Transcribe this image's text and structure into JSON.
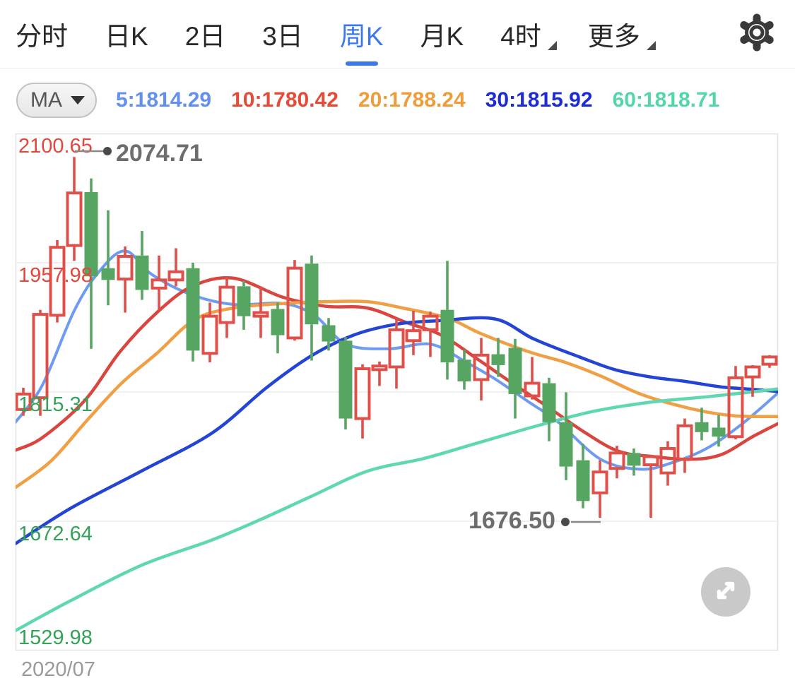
{
  "tab_bar": {
    "active_color": "#3b78f0",
    "tabs": [
      {
        "label": "分时",
        "active": false,
        "caret": false
      },
      {
        "label": "日K",
        "active": false,
        "caret": false
      },
      {
        "label": "2日",
        "active": false,
        "caret": false
      },
      {
        "label": "3日",
        "active": false,
        "caret": false
      },
      {
        "label": "周K",
        "active": true,
        "caret": false
      },
      {
        "label": "月K",
        "active": false,
        "caret": false
      },
      {
        "label": "4时",
        "active": false,
        "caret": true
      },
      {
        "label": "更多",
        "active": false,
        "caret": true
      }
    ],
    "settings_icon": "gear-icon"
  },
  "indicator_bar": {
    "selector_label": "MA",
    "selector_caret_icon": "chevron-down-icon",
    "items": [
      {
        "label": "5:1814.29",
        "color": "#6390ee"
      },
      {
        "label": "10:1780.42",
        "color": "#e44c38"
      },
      {
        "label": "20:1788.24",
        "color": "#ef9c3a"
      },
      {
        "label": "30:1815.92",
        "color": "#1d2bd2"
      },
      {
        "label": "60:1818.71",
        "color": "#55d6a9"
      }
    ]
  },
  "chart_data": {
    "type": "candlestick",
    "x_axis_label": "2020/07",
    "up_color": "#e0504a",
    "down_color": "#57a562",
    "grid": true,
    "y_ticks": [
      {
        "label": "2100.65",
        "price": 2100.65,
        "color": "#e2483c"
      },
      {
        "label": "1957.98",
        "price": 1957.98,
        "color": "#e2483c"
      },
      {
        "label": "1815.31",
        "price": 1815.31,
        "color": "#36a159"
      },
      {
        "label": "1672.64",
        "price": 1672.64,
        "color": "#36a159"
      },
      {
        "label": "1529.98",
        "price": 1529.98,
        "color": "#36a159"
      }
    ],
    "annotations": {
      "high": {
        "label": "2074.71",
        "price": 2074.71,
        "color": "#6d6d6d"
      },
      "low": {
        "label": "1676.50",
        "price": 1676.5,
        "color": "#6d6d6d"
      }
    },
    "candles_format": [
      "open",
      "high",
      "low",
      "close",
      "direction(u=up-hollow-red,d=down-solid-green)"
    ],
    "candles": [
      [
        1796,
        1820,
        1789,
        1813,
        "u"
      ],
      [
        1809,
        1906,
        1789,
        1901,
        "u"
      ],
      [
        1900,
        1983,
        1892,
        1975,
        "u"
      ],
      [
        1977,
        2074.71,
        1960,
        2035,
        "u"
      ],
      [
        2036,
        2051,
        1863,
        1943,
        "d"
      ],
      [
        1952,
        2016,
        1911,
        1939,
        "d"
      ],
      [
        1940,
        1976,
        1903,
        1965,
        "u"
      ],
      [
        1966,
        1993,
        1917,
        1928,
        "d"
      ],
      [
        1930,
        1966,
        1906,
        1939,
        "u"
      ],
      [
        1939,
        1974,
        1932,
        1948,
        "u"
      ],
      [
        1952,
        1958,
        1849,
        1861,
        "d"
      ],
      [
        1858,
        1914,
        1848,
        1899,
        "u"
      ],
      [
        1892,
        1942,
        1875,
        1931,
        "u"
      ],
      [
        1932,
        1938,
        1884,
        1899,
        "d"
      ],
      [
        1899,
        1932,
        1875,
        1903,
        "u"
      ],
      [
        1907,
        1914,
        1858,
        1878,
        "d"
      ],
      [
        1875,
        1961,
        1872,
        1952,
        "u"
      ],
      [
        1957,
        1966,
        1850,
        1890,
        "d"
      ],
      [
        1889,
        1897,
        1861,
        1871,
        "d"
      ],
      [
        1872,
        1876,
        1774,
        1786,
        "d"
      ],
      [
        1786,
        1846,
        1764,
        1841,
        "u"
      ],
      [
        1840,
        1849,
        1822,
        1844,
        "u"
      ],
      [
        1843,
        1897,
        1819,
        1884,
        "u"
      ],
      [
        1872,
        1905,
        1856,
        1883,
        "u"
      ],
      [
        1884,
        1904,
        1854,
        1899,
        "u"
      ],
      [
        1906,
        1960,
        1829,
        1848,
        "d"
      ],
      [
        1851,
        1862,
        1818,
        1827,
        "d"
      ],
      [
        1829,
        1875,
        1806,
        1856,
        "u"
      ],
      [
        1857,
        1875,
        1832,
        1845,
        "d"
      ],
      [
        1864,
        1874,
        1786,
        1813,
        "d"
      ],
      [
        1811,
        1854,
        1807,
        1825,
        "u"
      ],
      [
        1825,
        1831,
        1761,
        1782,
        "d"
      ],
      [
        1782,
        1815,
        1718,
        1733,
        "d"
      ],
      [
        1740,
        1758,
        1687,
        1695,
        "d"
      ],
      [
        1704,
        1740,
        1676.5,
        1727,
        "u"
      ],
      [
        1731,
        1756,
        1720,
        1748,
        "u"
      ],
      [
        1748,
        1753,
        1723,
        1734,
        "d"
      ],
      [
        1735,
        1746,
        1676.5,
        1744,
        "u"
      ],
      [
        1726,
        1761,
        1712,
        1753,
        "u"
      ],
      [
        1741,
        1786,
        1726,
        1778,
        "u"
      ],
      [
        1782,
        1798,
        1762,
        1771,
        "d"
      ],
      [
        1776,
        1790,
        1755,
        1766,
        "d"
      ],
      [
        1766,
        1844,
        1763,
        1831,
        "u"
      ],
      [
        1832,
        1845,
        1810,
        1843,
        "u"
      ],
      [
        1846,
        1856,
        1842,
        1854,
        "u"
      ]
    ],
    "ma_series": [
      {
        "name": "MA5",
        "color": "#6e9bf0",
        "width": 4,
        "points": [
          [
            22,
            1782
          ],
          [
            60,
            1823
          ],
          [
            105,
            1905
          ],
          [
            140,
            1948
          ],
          [
            177,
            1971
          ],
          [
            215,
            1945
          ],
          [
            270,
            1923
          ],
          [
            330,
            1912
          ],
          [
            400,
            1913
          ],
          [
            445,
            1900
          ],
          [
            490,
            1868
          ],
          [
            550,
            1863
          ],
          [
            610,
            1868
          ],
          [
            660,
            1848
          ],
          [
            700,
            1830
          ],
          [
            745,
            1806
          ],
          [
            790,
            1782
          ],
          [
            850,
            1741
          ],
          [
            907,
            1730
          ],
          [
            950,
            1737
          ],
          [
            1000,
            1753
          ],
          [
            1050,
            1780
          ],
          [
            1101,
            1814.29
          ]
        ]
      },
      {
        "name": "MA10",
        "color": "#d9453f",
        "width": 4.5,
        "points": [
          [
            22,
            1751
          ],
          [
            60,
            1765
          ],
          [
            120,
            1806
          ],
          [
            170,
            1860
          ],
          [
            222,
            1903
          ],
          [
            272,
            1932
          ],
          [
            330,
            1941
          ],
          [
            400,
            1920
          ],
          [
            460,
            1910
          ],
          [
            520,
            1908
          ],
          [
            575,
            1892
          ],
          [
            625,
            1878
          ],
          [
            675,
            1852
          ],
          [
            725,
            1825
          ],
          [
            775,
            1799
          ],
          [
            825,
            1772
          ],
          [
            875,
            1750
          ],
          [
            925,
            1744
          ],
          [
            975,
            1741
          ],
          [
            1020,
            1746
          ],
          [
            1065,
            1766
          ],
          [
            1101,
            1780.42
          ]
        ]
      },
      {
        "name": "MA20",
        "color": "#efa045",
        "width": 4.5,
        "points": [
          [
            22,
            1710
          ],
          [
            72,
            1739
          ],
          [
            122,
            1783
          ],
          [
            172,
            1825
          ],
          [
            222,
            1858
          ],
          [
            275,
            1895
          ],
          [
            330,
            1908
          ],
          [
            400,
            1913
          ],
          [
            460,
            1915
          ],
          [
            520,
            1915
          ],
          [
            570,
            1908
          ],
          [
            633,
            1897
          ],
          [
            680,
            1880
          ],
          [
            747,
            1860
          ],
          [
            800,
            1848
          ],
          [
            850,
            1833
          ],
          [
            910,
            1812
          ],
          [
            983,
            1796
          ],
          [
            1040,
            1789
          ],
          [
            1101,
            1788.24
          ]
        ]
      },
      {
        "name": "MA30",
        "color": "#2444d4",
        "width": 4.5,
        "points": [
          [
            22,
            1648
          ],
          [
            100,
            1687
          ],
          [
            200,
            1728
          ],
          [
            300,
            1770
          ],
          [
            377,
            1820
          ],
          [
            440,
            1855
          ],
          [
            500,
            1878
          ],
          [
            560,
            1890
          ],
          [
            620,
            1894
          ],
          [
            700,
            1896
          ],
          [
            755,
            1874
          ],
          [
            820,
            1854
          ],
          [
            870,
            1840
          ],
          [
            920,
            1832
          ],
          [
            970,
            1827
          ],
          [
            1020,
            1821
          ],
          [
            1070,
            1818
          ],
          [
            1101,
            1815.92
          ]
        ]
      },
      {
        "name": "MA60",
        "color": "#5fd8b2",
        "width": 4.5,
        "points": [
          [
            22,
            1552
          ],
          [
            100,
            1585
          ],
          [
            200,
            1624
          ],
          [
            300,
            1652
          ],
          [
            370,
            1675
          ],
          [
            440,
            1700
          ],
          [
            520,
            1728
          ],
          [
            600,
            1742
          ],
          [
            680,
            1760
          ],
          [
            760,
            1778
          ],
          [
            840,
            1794
          ],
          [
            920,
            1804
          ],
          [
            1000,
            1810
          ],
          [
            1060,
            1815
          ],
          [
            1101,
            1818.71
          ]
        ]
      }
    ]
  },
  "controls": {
    "expand_icon": "expand-diagonal-arrows-icon"
  }
}
